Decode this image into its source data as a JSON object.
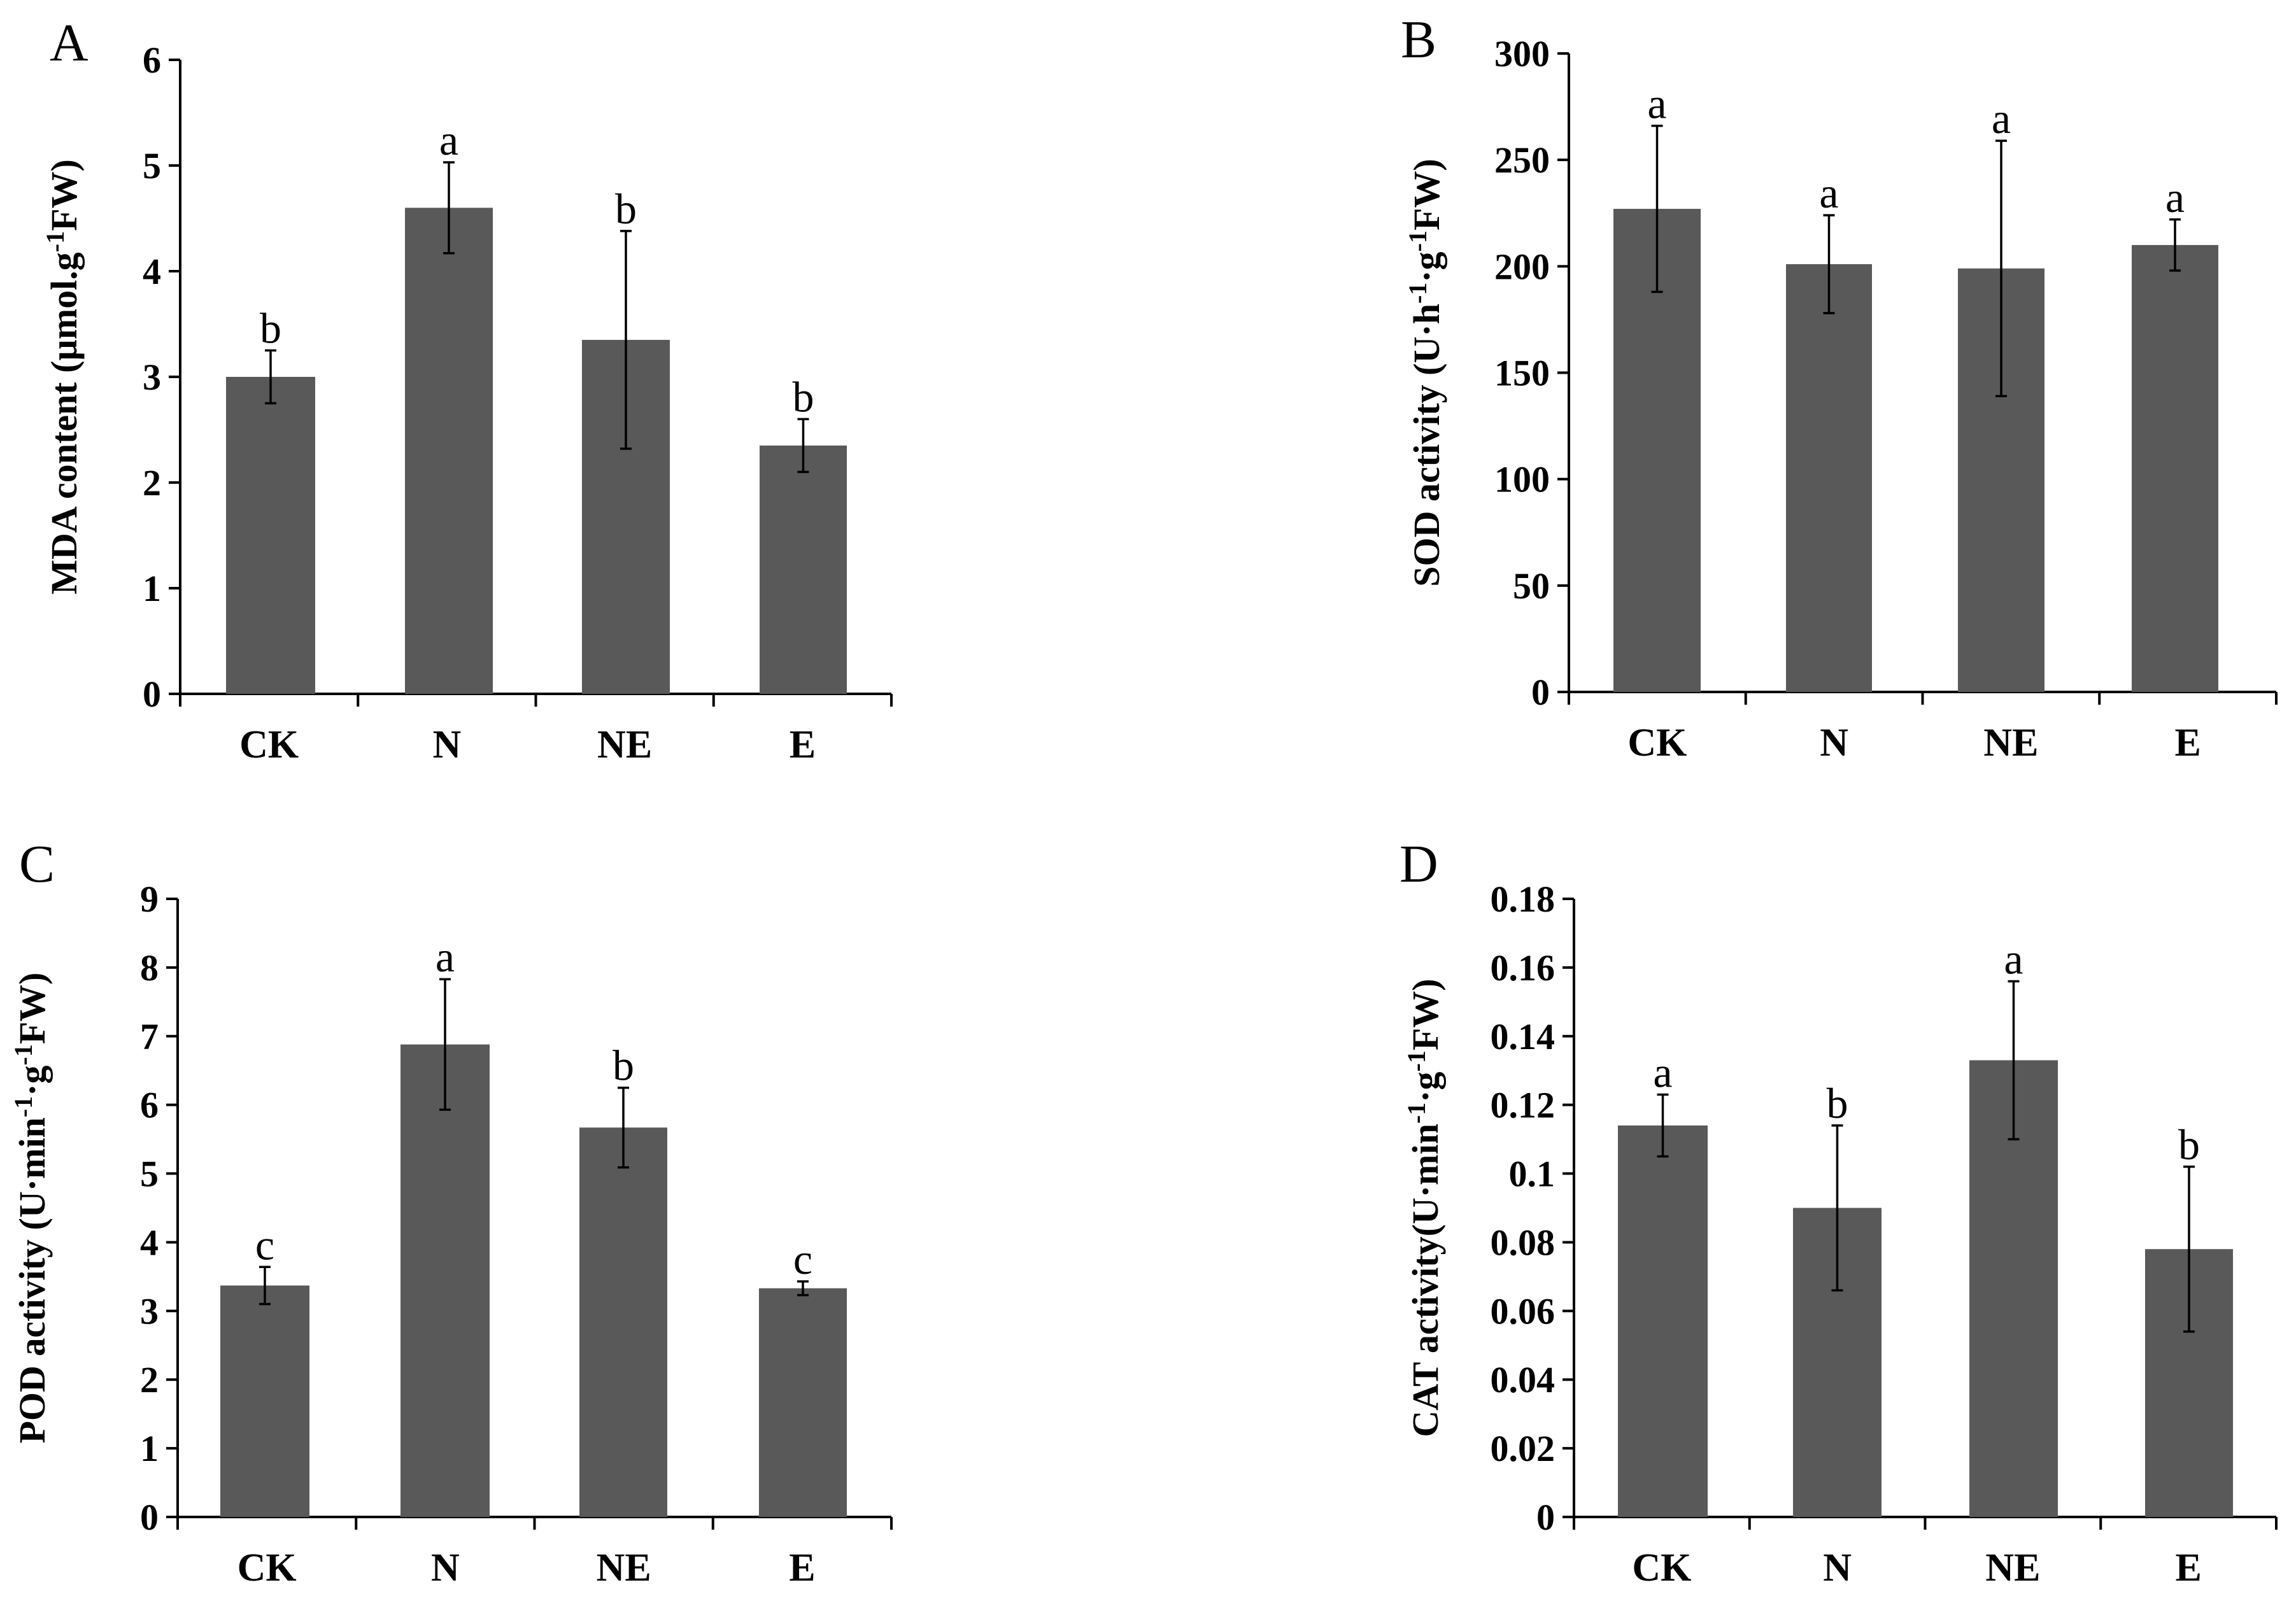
{
  "colors": {
    "bar": "#595959",
    "axis": "#000000"
  },
  "chart_data": [
    {
      "panel": "A",
      "type": "bar",
      "ylabel_main": "MDA content (µmol.g",
      "ylabel_sup": "-1",
      "ylabel_tail": "FW)",
      "categories": [
        "CK",
        "N",
        "NE",
        "E"
      ],
      "values": [
        3.0,
        4.6,
        3.35,
        2.35
      ],
      "errors": [
        0.25,
        0.43,
        1.03,
        0.25
      ],
      "significance": [
        "b",
        "a",
        "b",
        "b"
      ],
      "ylim": [
        0,
        6
      ],
      "yticks": [
        "0",
        "1",
        "2",
        "3",
        "4",
        "5",
        "6"
      ],
      "tick_values": [
        0,
        1,
        2,
        3,
        4,
        5,
        6
      ]
    },
    {
      "panel": "B",
      "type": "bar",
      "ylabel_main": "SOD activity (U·h",
      "ylabel_sup": "-1",
      "ylabel_mid": "·g",
      "ylabel_sup2": "-1",
      "ylabel_tail": "FW)",
      "categories": [
        "CK",
        "N",
        "NE",
        "E"
      ],
      "values": [
        227,
        201,
        199,
        210
      ],
      "errors": [
        39,
        23,
        60,
        12
      ],
      "significance": [
        "a",
        "a",
        "a",
        "a"
      ],
      "ylim": [
        0,
        300
      ],
      "yticks": [
        "0",
        "50",
        "100",
        "150",
        "200",
        "250",
        "300"
      ],
      "tick_values": [
        0,
        50,
        100,
        150,
        200,
        250,
        300
      ]
    },
    {
      "panel": "C",
      "type": "bar",
      "ylabel_main": "POD activity (U·min",
      "ylabel_sup": "-1",
      "ylabel_mid": "·g",
      "ylabel_sup2": "-1",
      "ylabel_tail": "FW)",
      "categories": [
        "CK",
        "N",
        "NE",
        "E"
      ],
      "values": [
        3.37,
        6.88,
        5.67,
        3.33
      ],
      "errors": [
        0.27,
        0.95,
        0.58,
        0.1
      ],
      "significance": [
        "c",
        "a",
        "b",
        "c"
      ],
      "ylim": [
        0,
        9
      ],
      "yticks": [
        "0",
        "1",
        "2",
        "3",
        "4",
        "5",
        "6",
        "7",
        "8",
        "9"
      ],
      "tick_values": [
        0,
        1,
        2,
        3,
        4,
        5,
        6,
        7,
        8,
        9
      ]
    },
    {
      "panel": "D",
      "type": "bar",
      "ylabel_main": "CAT activity(U·min",
      "ylabel_sup": "-1",
      "ylabel_mid": "·g",
      "ylabel_sup2": "-1",
      "ylabel_tail": "FW)",
      "categories": [
        "CK",
        "N",
        "NE",
        "E"
      ],
      "values": [
        0.114,
        0.09,
        0.133,
        0.078
      ],
      "errors": [
        0.009,
        0.024,
        0.023,
        0.024
      ],
      "significance": [
        "a",
        "b",
        "a",
        "b"
      ],
      "ylim": [
        0,
        0.18
      ],
      "yticks": [
        "0",
        "0.02",
        "0.04",
        "0.06",
        "0.08",
        "0.1",
        "0.12",
        "0.14",
        "0.16",
        "0.18"
      ],
      "tick_values": [
        0,
        0.02,
        0.04,
        0.06,
        0.08,
        0.1,
        0.12,
        0.14,
        0.16,
        0.18
      ]
    }
  ]
}
